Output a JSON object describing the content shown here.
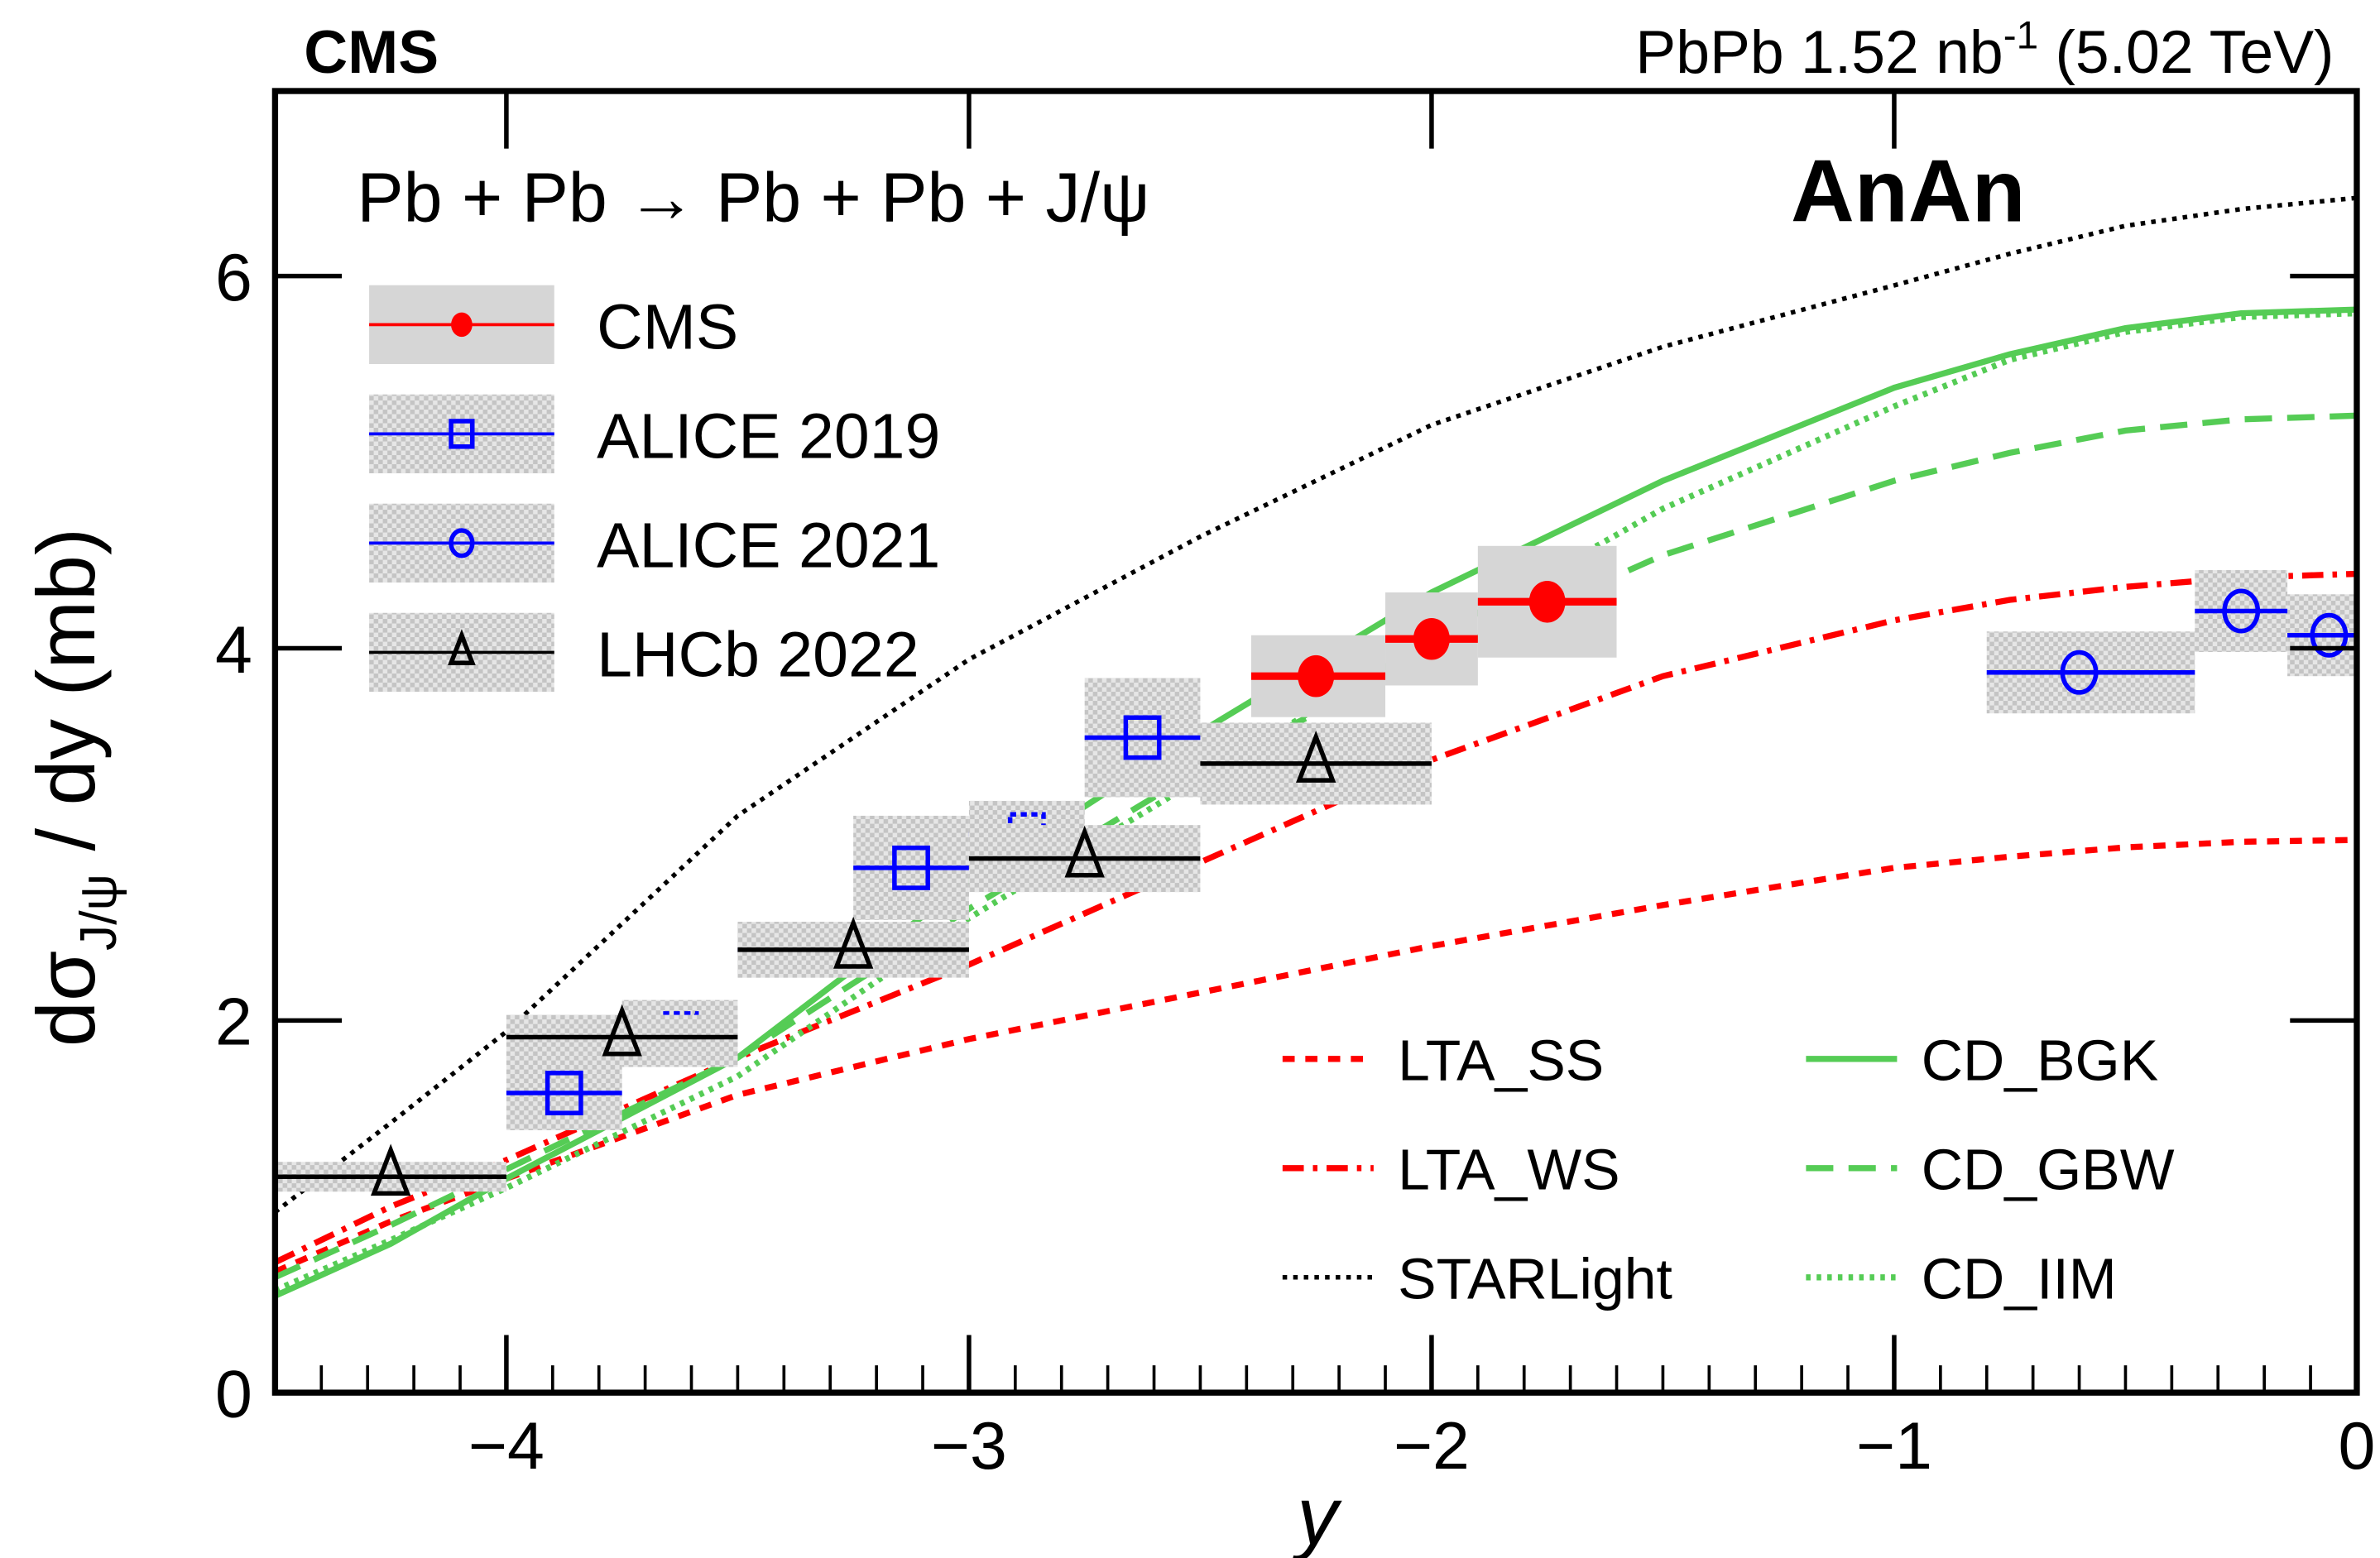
{
  "chart_data": {
    "type": "scatter",
    "header_left": "CMS",
    "header_right": "PbPb 1.52 nb",
    "header_right_sup": "-1",
    "header_right_tail": " (5.02 TeV)",
    "process": "Pb + Pb → Pb + Pb + J/ψ",
    "class_label": "AnAn",
    "xlabel": "y",
    "ylabel": "dσ",
    "ylabel_sub": "J/ψ",
    "ylabel_tail": " / dy (mb)",
    "xlim": [
      -4.5,
      0
    ],
    "ylim": [
      0,
      7
    ],
    "xticks": [
      {
        "v": -4,
        "label": "−4"
      },
      {
        "v": -3,
        "label": "−3"
      },
      {
        "v": -2,
        "label": "−2"
      },
      {
        "v": -1,
        "label": "−1"
      },
      {
        "v": 0,
        "label": "0"
      }
    ],
    "yticks": [
      {
        "v": 0,
        "label": "0"
      },
      {
        "v": 2,
        "label": "2"
      },
      {
        "v": 4,
        "label": "4"
      },
      {
        "v": 6,
        "label": "6"
      }
    ],
    "data_series": [
      {
        "name": "CMS",
        "color": "#ff0000",
        "marker": "circle-filled",
        "points": [
          {
            "x": -2.25,
            "xlo": -2.39,
            "xhi": -2.1,
            "y": 3.85,
            "syst": 0.22
          },
          {
            "x": -2.0,
            "xlo": -2.1,
            "xhi": -1.9,
            "y": 4.05,
            "syst": 0.25
          },
          {
            "x": -1.75,
            "xlo": -1.9,
            "xhi": -1.6,
            "y": 4.25,
            "syst": 0.3
          }
        ]
      },
      {
        "name": "ALICE 2019",
        "color": "#0000ff",
        "marker": "square-open",
        "points": [
          {
            "x": -3.875,
            "xlo": -4.0,
            "xhi": -3.75,
            "y": 1.61,
            "syst": 0.2
          },
          {
            "x": -3.625,
            "xlo": -3.75,
            "xhi": -3.5,
            "y": 1.93,
            "syst": 0.18,
            "dashed": true
          },
          {
            "x": -3.375,
            "xlo": -3.5,
            "xhi": -3.25,
            "y": 2.38,
            "syst": 0.15,
            "dashed": true
          },
          {
            "x": -3.125,
            "xlo": -3.25,
            "xhi": -3.0,
            "y": 2.82,
            "syst": 0.28
          },
          {
            "x": -2.875,
            "xlo": -3.0,
            "xhi": -2.75,
            "y": 3.0,
            "syst": 0.18,
            "dashed": true
          },
          {
            "x": -2.625,
            "xlo": -2.75,
            "xhi": -2.5,
            "y": 3.52,
            "syst": 0.32
          }
        ]
      },
      {
        "name": "ALICE 2021",
        "color": "#0000ff",
        "marker": "circle-open",
        "points": [
          {
            "x": -0.6,
            "xlo": -0.8,
            "xhi": -0.35,
            "y": 3.87,
            "syst": 0.22
          },
          {
            "x": -0.25,
            "xlo": -0.35,
            "xhi": -0.15,
            "y": 4.2,
            "syst": 0.22
          },
          {
            "x": -0.06,
            "xlo": -0.15,
            "xhi": 0.0,
            "y": 4.07,
            "syst": 0.22
          }
        ]
      },
      {
        "name": "LHCb  2022",
        "color": "#000000",
        "marker": "triangle-open",
        "points": [
          {
            "x": -4.25,
            "xlo": -4.5,
            "xhi": -4.0,
            "y": 1.16,
            "syst": 0.08
          },
          {
            "x": -3.75,
            "xlo": -4.0,
            "xhi": -3.5,
            "y": 1.91,
            "syst": 0.12
          },
          {
            "x": -3.25,
            "xlo": -3.5,
            "xhi": -3.0,
            "y": 2.38,
            "syst": 0.15
          },
          {
            "x": -2.75,
            "xlo": -3.0,
            "xhi": -2.5,
            "y": 2.87,
            "syst": 0.18
          },
          {
            "x": -2.25,
            "xlo": -2.5,
            "xhi": -2.0,
            "y": 3.38,
            "syst": 0.22
          }
        ]
      }
    ],
    "model_x": [
      -4.5,
      -4.25,
      -4,
      -3.5,
      -3,
      -2.5,
      -2,
      -1.5,
      -1,
      -0.75,
      -0.5,
      -0.25,
      0
    ],
    "models": [
      {
        "name": "LTA_SS",
        "color": "#ff0000",
        "dash": "8,7",
        "width": 4,
        "y": [
          0.65,
          0.92,
          1.15,
          1.6,
          1.9,
          2.15,
          2.4,
          2.62,
          2.82,
          2.88,
          2.93,
          2.96,
          2.97
        ]
      },
      {
        "name": "LTA_WS",
        "color": "#ff0000",
        "dash": "14,6,3,6",
        "width": 4,
        "y": [
          0.7,
          1.0,
          1.25,
          1.8,
          2.3,
          2.85,
          3.4,
          3.85,
          4.15,
          4.26,
          4.33,
          4.38,
          4.4
        ]
      },
      {
        "name": "STARLight",
        "color": "#000000",
        "dash": "3,4",
        "width": 3,
        "y": [
          0.97,
          1.45,
          1.94,
          3.1,
          3.94,
          4.6,
          5.2,
          5.62,
          5.95,
          6.12,
          6.27,
          6.36,
          6.42
        ]
      },
      {
        "name": "CD_BGK",
        "color": "#55cc55",
        "dash": "",
        "width": 4,
        "y": [
          0.52,
          0.8,
          1.15,
          1.8,
          2.75,
          3.55,
          4.3,
          4.9,
          5.4,
          5.58,
          5.72,
          5.8,
          5.82
        ]
      },
      {
        "name": "CD_GBW",
        "color": "#55cc55",
        "dash": "18,10",
        "width": 4,
        "y": [
          0.62,
          0.9,
          1.2,
          1.8,
          2.6,
          3.35,
          3.95,
          4.5,
          4.9,
          5.05,
          5.17,
          5.23,
          5.25
        ]
      },
      {
        "name": "CD_IIM",
        "color": "#55cc55",
        "dash": "3,4",
        "width": 4,
        "y": [
          0.55,
          0.82,
          1.1,
          1.7,
          2.55,
          3.3,
          4.05,
          4.75,
          5.3,
          5.55,
          5.7,
          5.78,
          5.8
        ]
      }
    ]
  }
}
